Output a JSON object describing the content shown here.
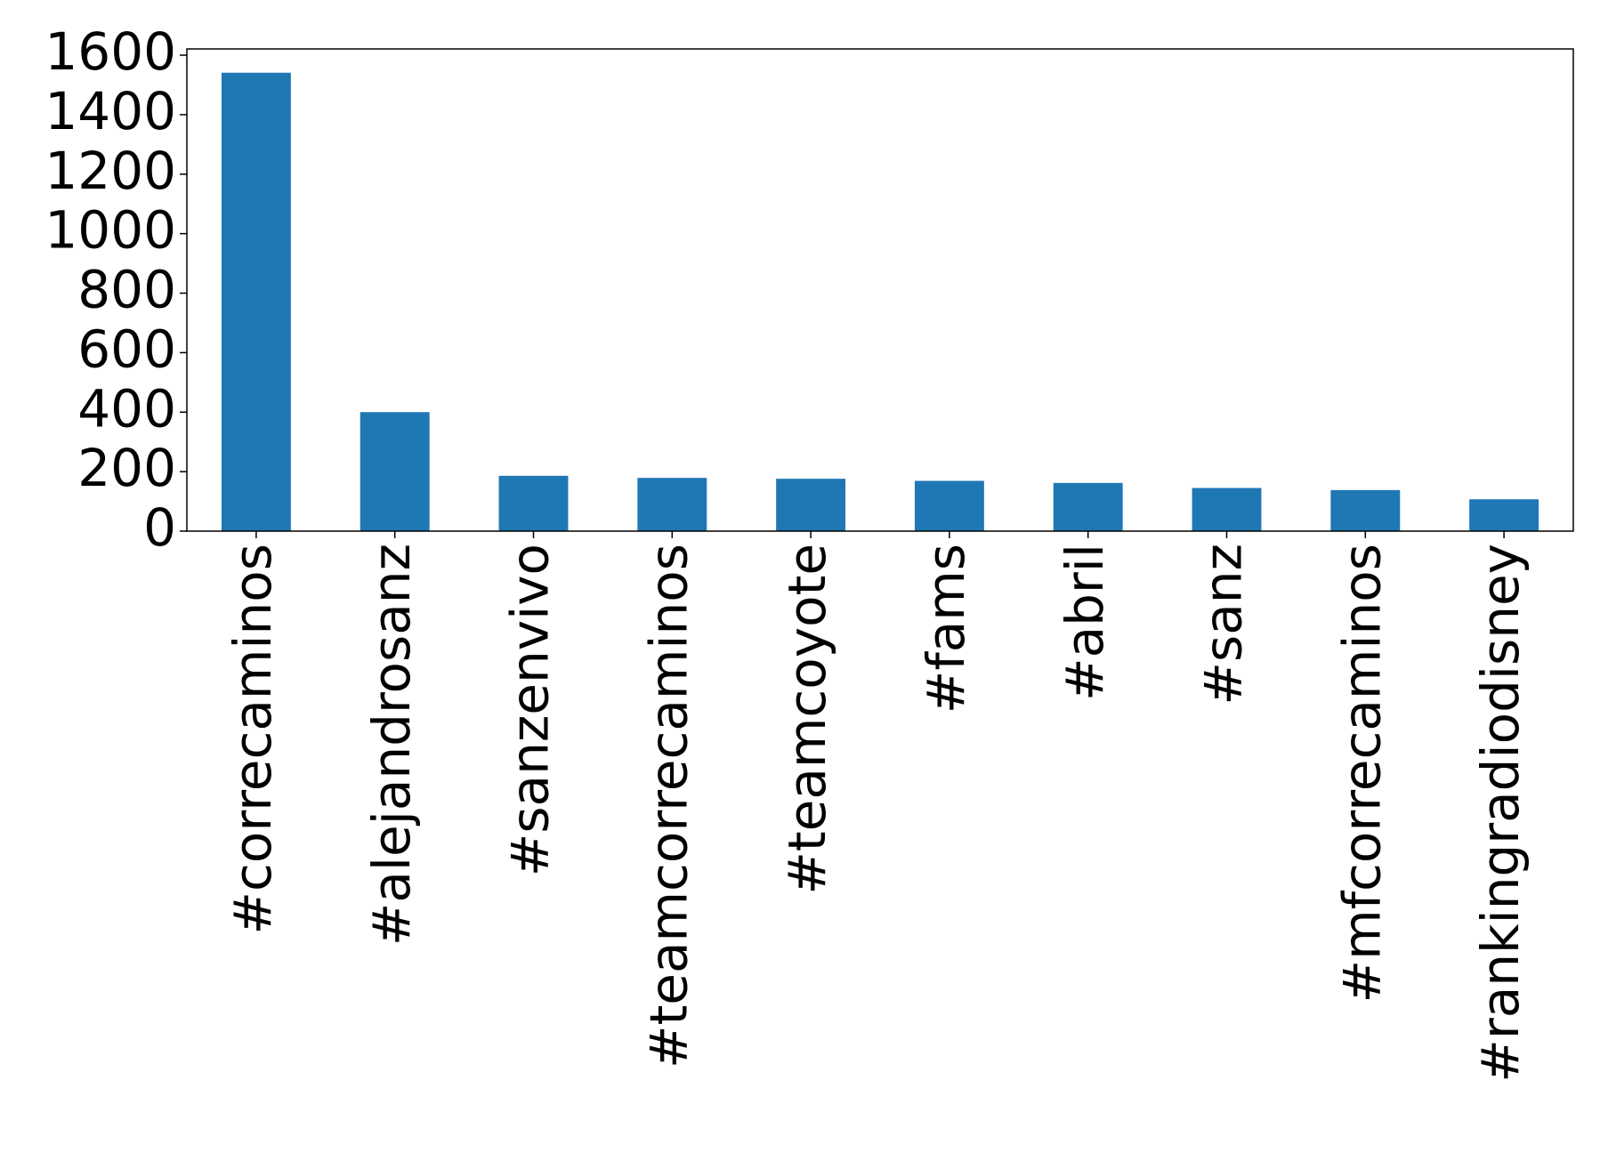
{
  "chart_data": {
    "type": "bar",
    "categories": [
      "#correcaminos",
      "#alejandrosanz",
      "#sanzenvivo",
      "#teamcorrecaminos",
      "#teamcoyote",
      "#fams",
      "#abril",
      "#sanz",
      "#mfcorrecaminos",
      "#rankingradiodisney"
    ],
    "values": [
      1541,
      400,
      186,
      179,
      176,
      169,
      162,
      145,
      138,
      107
    ],
    "color": "#1f77b4",
    "ylim": [
      0,
      1621
    ],
    "yticks": [
      0,
      200,
      400,
      600,
      800,
      1000,
      1200,
      1400,
      1600
    ]
  }
}
